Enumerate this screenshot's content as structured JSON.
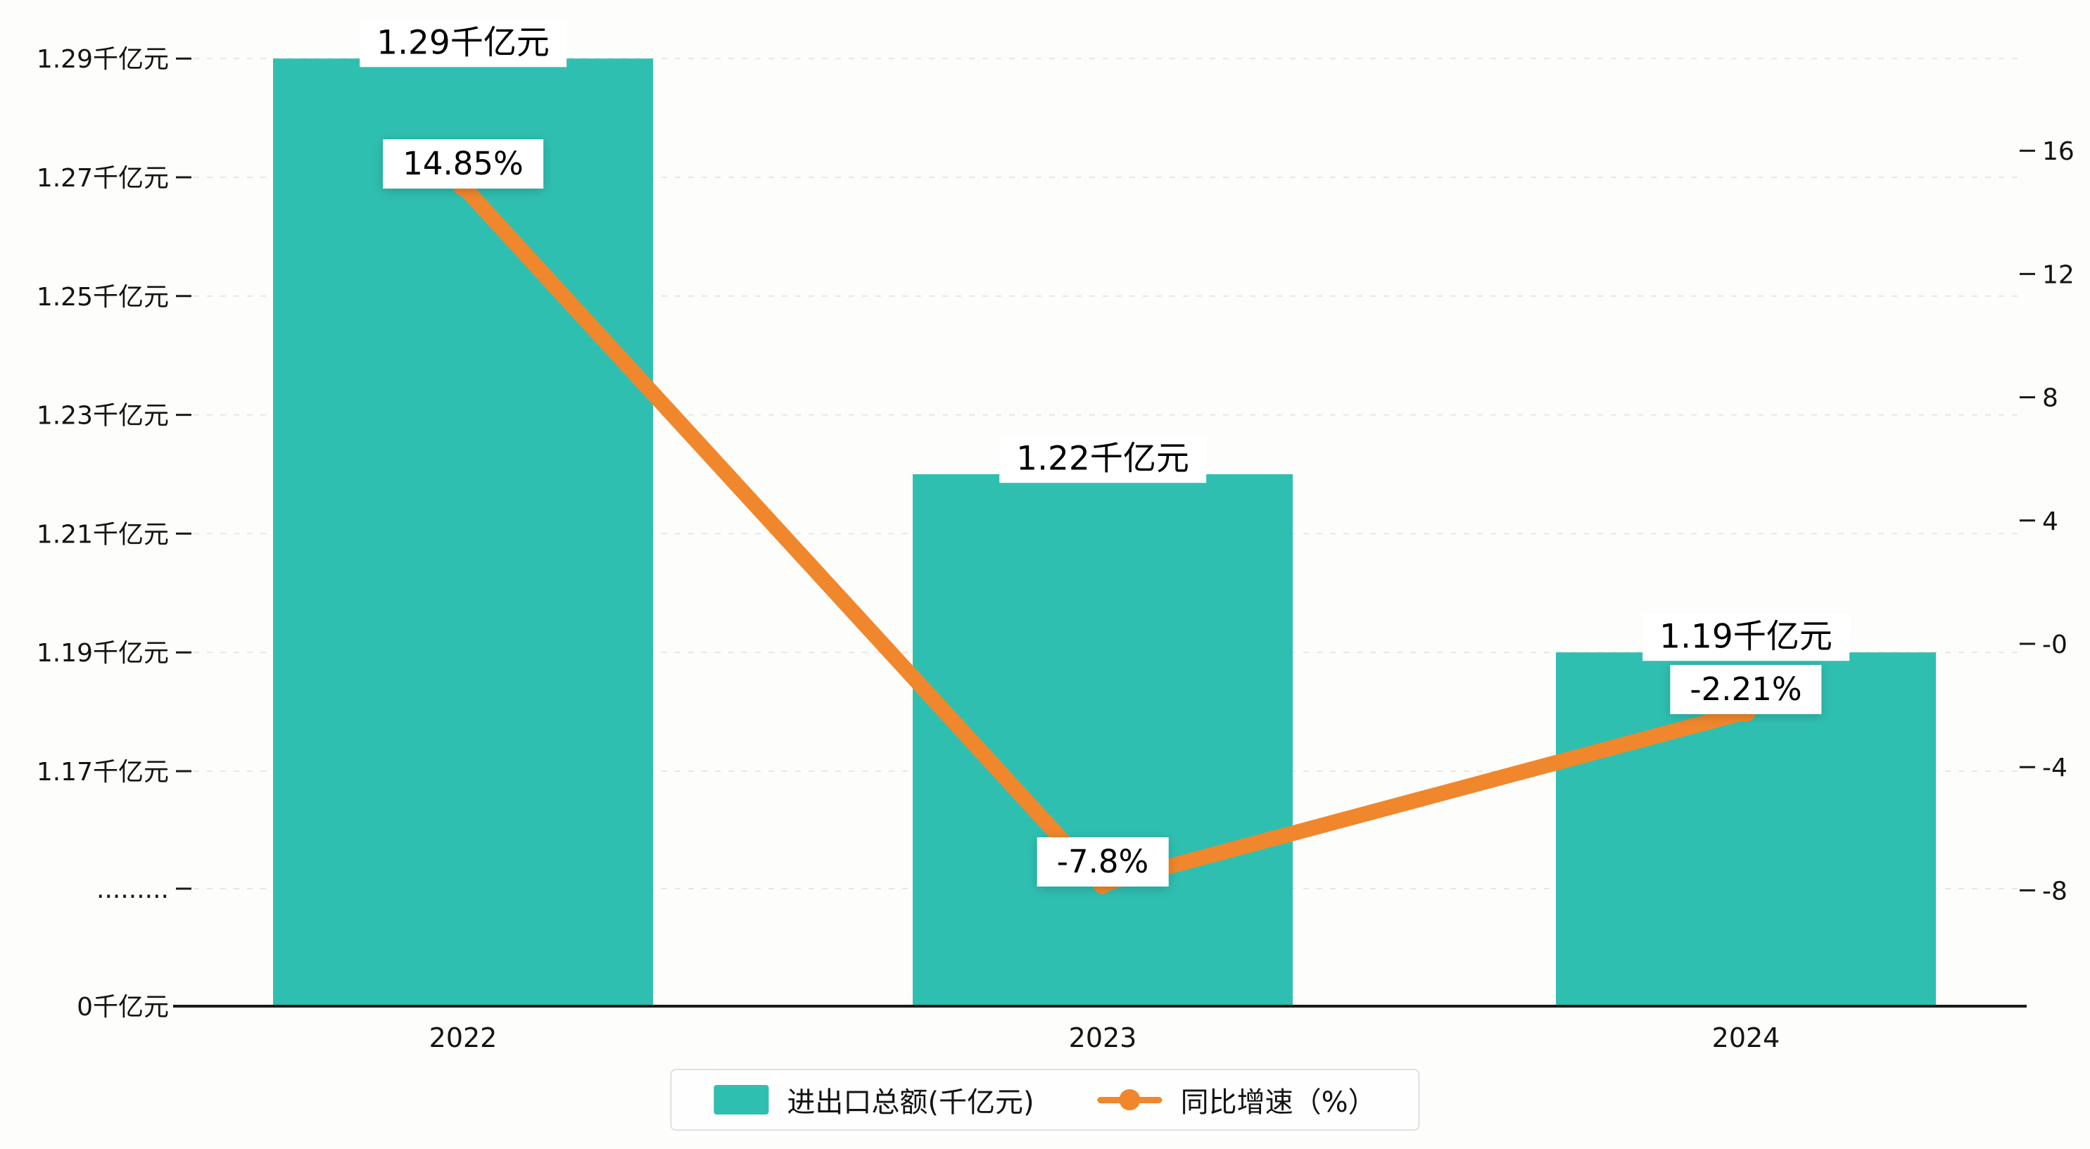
{
  "chart_data": {
    "type": "bar",
    "subtype": "bar-with-line-dual-axis",
    "categories": [
      "2022",
      "2023",
      "2024"
    ],
    "series": [
      {
        "name": "进出口总额(千亿元)",
        "type": "bar",
        "axis": "left",
        "values": [
          1.29,
          1.22,
          1.19
        ],
        "data_labels": [
          "1.29千亿元",
          "1.22千亿元",
          "1.19千亿元"
        ],
        "color": "#2FBFB0"
      },
      {
        "name": "同比增速（%）",
        "type": "line",
        "axis": "right",
        "values": [
          14.85,
          -7.8,
          -2.21
        ],
        "data_labels": [
          "14.85%",
          "-7.8%",
          "-2.21%"
        ],
        "color": "#F0872C"
      }
    ],
    "left_axis": {
      "unit": "千亿元",
      "tick_labels": [
        "1.29千亿元",
        "1.27千亿元",
        "1.25千亿元",
        "1.23千亿元",
        "1.21千亿元",
        "1.19千亿元",
        "1.17千亿元",
        ".........",
        "0千亿元"
      ],
      "tick_values": [
        1.29,
        1.27,
        1.25,
        1.23,
        1.21,
        1.19,
        1.17,
        null,
        0
      ],
      "broken_axis": true
    },
    "right_axis": {
      "tick_labels": [
        "16",
        "12",
        "8",
        "4",
        "-0",
        "-4",
        "-8"
      ],
      "tick_values": [
        16,
        12,
        8,
        4,
        0,
        -4,
        -8
      ]
    },
    "grid": "horizontal dashed",
    "legend_position": "bottom-center"
  },
  "legend": {
    "items": [
      {
        "label": "进出口总额(千亿元)",
        "swatch": "bar"
      },
      {
        "label": "同比增速（%）",
        "swatch": "line-dot"
      }
    ]
  },
  "colors": {
    "bar": "#2FBFB0",
    "line": "#F0872C",
    "grid": "#E7E7E4",
    "axis_line": "#1A1A1A",
    "text": "#141414",
    "background": "#FDFDFB",
    "label_box": "#FFFFFF"
  }
}
